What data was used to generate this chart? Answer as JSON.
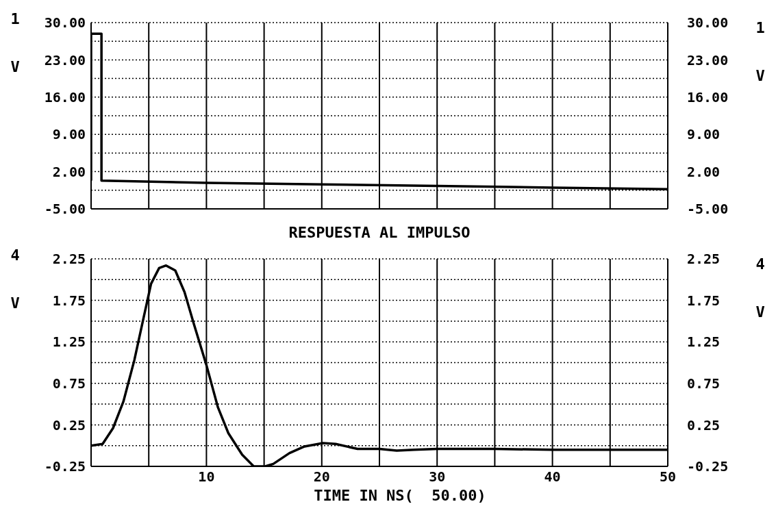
{
  "chart_data": [
    {
      "type": "line",
      "ylabel": "1\nV",
      "y2label": "1\nV",
      "xlim": [
        0,
        50
      ],
      "xticks": [
        5,
        10,
        15,
        20,
        25,
        30,
        35,
        40,
        45
      ],
      "ylim": [
        -5,
        30
      ],
      "yticks": [
        {
          "value": -5,
          "label": "-5.00"
        },
        {
          "value": -1.5,
          "label": null
        },
        {
          "value": 2,
          "label": "2.00"
        },
        {
          "value": 5.5,
          "label": null
        },
        {
          "value": 9,
          "label": "9.00"
        },
        {
          "value": 12.5,
          "label": null
        },
        {
          "value": 16,
          "label": "16.00"
        },
        {
          "value": 19.5,
          "label": null
        },
        {
          "value": 23,
          "label": "23.00"
        },
        {
          "value": 26.5,
          "label": null
        },
        {
          "value": 30,
          "label": "30.00"
        }
      ],
      "y2lim": [
        -5,
        30
      ],
      "y2ticks": [
        {
          "value": -5,
          "label": "-5.00"
        },
        {
          "value": 2,
          "label": "2.00"
        },
        {
          "value": 9,
          "label": "9.00"
        },
        {
          "value": 16,
          "label": "16.00"
        },
        {
          "value": 23,
          "label": "23.00"
        },
        {
          "value": 30,
          "label": "30.00"
        }
      ],
      "grid": true,
      "tick_labels": "y",
      "marker": "none",
      "legend": false,
      "series": [
        {
          "color": "#000000",
          "x": [
            0,
            0,
            0.9,
            0.9,
            10,
            20,
            30,
            40,
            50
          ],
          "values": [
            0.3,
            27.9,
            27.9,
            0.3,
            -0.1,
            -0.4,
            -0.7,
            -1.0,
            -1.3
          ]
        }
      ]
    },
    {
      "type": "line",
      "title": "RESPUESTA AL IMPULSO",
      "xlabel": "TIME IN NS(  50.00)",
      "ylabel": "4\nV",
      "y2label": "4\nV",
      "xlim": [
        0,
        50
      ],
      "xticks": [
        {
          "value": 5,
          "label": null
        },
        10,
        {
          "value": 15,
          "label": null
        },
        20,
        {
          "value": 25,
          "label": null
        },
        30,
        {
          "value": 35,
          "label": null
        },
        40,
        {
          "value": 45,
          "label": null
        },
        50
      ],
      "ylim": [
        -0.25,
        2.25
      ],
      "yticks": [
        -0.25,
        {
          "value": 0,
          "label": null
        },
        0.25,
        {
          "value": 0.5,
          "label": null
        },
        0.75,
        {
          "value": 1,
          "label": null
        },
        1.25,
        {
          "value": 1.5,
          "label": null
        },
        1.75,
        {
          "value": 2,
          "label": null
        },
        2.25
      ],
      "y2lim": [
        -0.25,
        2.25
      ],
      "y2ticks": [
        -0.25,
        0.25,
        0.75,
        1.25,
        1.75,
        2.25
      ],
      "grid": true,
      "marker": "none",
      "legend": false,
      "series": [
        {
          "color": "#000000",
          "x": [
            0,
            1,
            1.9,
            2.8,
            3.75,
            4.55,
            5.2,
            5.9,
            6.5,
            7.3,
            8.1,
            8.9,
            10,
            11,
            11.9,
            13.1,
            14.1,
            15.1,
            15.8,
            17.2,
            18.5,
            20.1,
            21.2,
            23.1,
            25,
            26.5,
            28,
            30,
            35,
            40,
            45,
            50
          ],
          "values": [
            0,
            0.02,
            0.21,
            0.53,
            1.03,
            1.54,
            1.95,
            2.14,
            2.17,
            2.11,
            1.85,
            1.47,
            0.97,
            0.46,
            0.15,
            -0.11,
            -0.25,
            -0.25,
            -0.22,
            -0.09,
            -0.01,
            0.03,
            0.02,
            -0.04,
            -0.04,
            -0.06,
            -0.05,
            -0.04,
            -0.04,
            -0.05,
            -0.05,
            -0.05
          ]
        }
      ]
    }
  ]
}
